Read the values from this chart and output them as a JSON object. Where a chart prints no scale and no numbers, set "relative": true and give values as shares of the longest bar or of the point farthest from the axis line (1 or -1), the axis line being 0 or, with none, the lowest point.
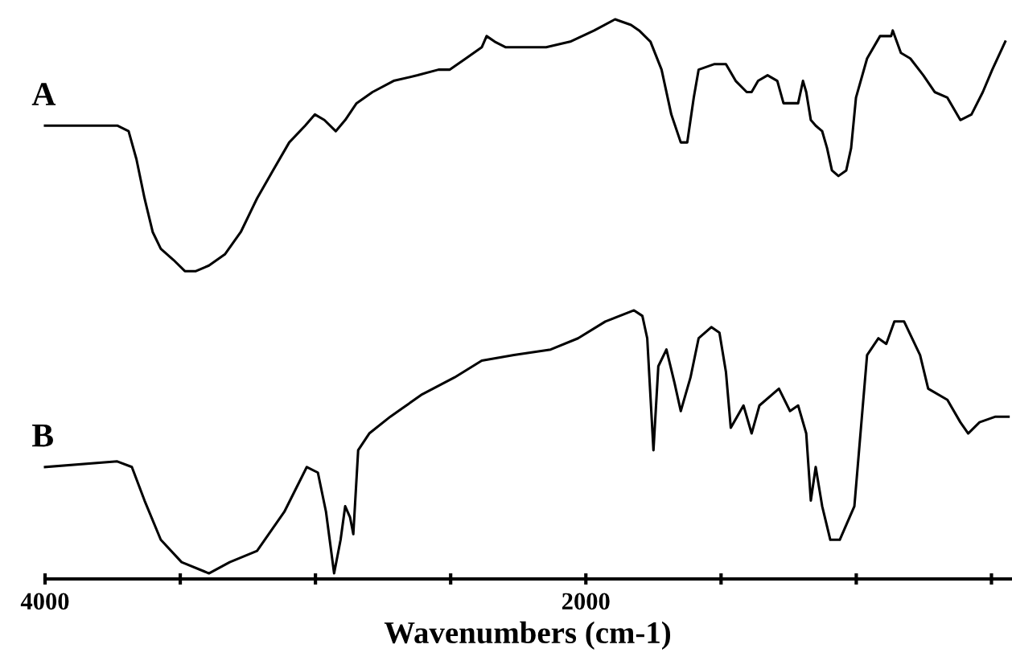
{
  "chart_data": {
    "type": "line",
    "relative": true,
    "xlabel": "Wavenumbers (cm-1)",
    "xlim": [
      4000,
      430
    ],
    "xticks": [
      4000,
      {
        "value": 3500,
        "label": null
      },
      {
        "value": 3000,
        "label": null
      },
      {
        "value": 2500,
        "label": null
      },
      2000,
      {
        "value": 1500,
        "label": null
      },
      {
        "value": 1000,
        "label": null
      },
      {
        "value": 500,
        "label": null
      }
    ],
    "grid": false,
    "legend": false,
    "marker": "none",
    "line_style": "solid",
    "series": [
      {
        "name": "A",
        "color": "#000000",
        "x": [
          4000,
          3733,
          3691,
          3662,
          3632,
          3602,
          3572,
          3525,
          3483,
          3442,
          3394,
          3335,
          3276,
          3216,
          3157,
          3097,
          3038,
          3002,
          2967,
          2925,
          2890,
          2848,
          2789,
          2711,
          2622,
          2545,
          2504,
          2444,
          2385,
          2367,
          2337,
          2296,
          2207,
          2147,
          2058,
          1969,
          1892,
          1833,
          1803,
          1761,
          1720,
          1684,
          1649,
          1625,
          1601,
          1583,
          1524,
          1482,
          1446,
          1405,
          1387,
          1363,
          1328,
          1292,
          1269,
          1245,
          1215,
          1197,
          1185,
          1168,
          1150,
          1126,
          1108,
          1090,
          1066,
          1037,
          1019,
          1001,
          960,
          912,
          871,
          865,
          835,
          800,
          752,
          710,
          663,
          615,
          574,
          532,
          497,
          449
        ],
        "values": [
          0.81,
          0.81,
          0.8,
          0.75,
          0.68,
          0.62,
          0.59,
          0.57,
          0.55,
          0.55,
          0.56,
          0.58,
          0.62,
          0.68,
          0.73,
          0.78,
          0.81,
          0.83,
          0.82,
          0.8,
          0.82,
          0.85,
          0.87,
          0.89,
          0.9,
          0.91,
          0.91,
          0.93,
          0.95,
          0.97,
          0.96,
          0.95,
          0.95,
          0.95,
          0.96,
          0.98,
          1.0,
          0.99,
          0.98,
          0.96,
          0.91,
          0.83,
          0.78,
          0.78,
          0.86,
          0.91,
          0.92,
          0.92,
          0.89,
          0.87,
          0.87,
          0.89,
          0.9,
          0.89,
          0.85,
          0.85,
          0.85,
          0.89,
          0.87,
          0.82,
          0.81,
          0.8,
          0.77,
          0.73,
          0.72,
          0.73,
          0.77,
          0.86,
          0.93,
          0.97,
          0.97,
          0.98,
          0.94,
          0.93,
          0.9,
          0.87,
          0.86,
          0.82,
          0.83,
          0.87,
          0.91,
          0.96
        ]
      },
      {
        "name": "B",
        "color": "#000000",
        "x": [
          4000,
          3733,
          3679,
          3632,
          3572,
          3495,
          3394,
          3317,
          3216,
          3115,
          3032,
          2991,
          2961,
          2931,
          2907,
          2890,
          2872,
          2860,
          2842,
          2801,
          2723,
          2605,
          2486,
          2385,
          2266,
          2130,
          2029,
          1928,
          1822,
          1791,
          1773,
          1750,
          1732,
          1702,
          1672,
          1649,
          1613,
          1583,
          1536,
          1506,
          1482,
          1464,
          1417,
          1387,
          1358,
          1286,
          1245,
          1215,
          1185,
          1168,
          1150,
          1126,
          1096,
          1061,
          1007,
          960,
          918,
          889,
          859,
          823,
          764,
          734,
          663,
          615,
          586,
          544,
          485,
          437
        ],
        "values": [
          0.2,
          0.21,
          0.2,
          0.14,
          0.07,
          0.03,
          0.01,
          0.03,
          0.05,
          0.12,
          0.2,
          0.19,
          0.12,
          0.01,
          0.07,
          0.13,
          0.11,
          0.08,
          0.23,
          0.26,
          0.29,
          0.33,
          0.36,
          0.39,
          0.4,
          0.41,
          0.43,
          0.46,
          0.48,
          0.47,
          0.43,
          0.23,
          0.38,
          0.41,
          0.35,
          0.3,
          0.36,
          0.43,
          0.45,
          0.44,
          0.37,
          0.27,
          0.31,
          0.26,
          0.31,
          0.34,
          0.3,
          0.31,
          0.26,
          0.14,
          0.2,
          0.13,
          0.07,
          0.07,
          0.13,
          0.4,
          0.43,
          0.42,
          0.46,
          0.46,
          0.4,
          0.34,
          0.32,
          0.28,
          0.26,
          0.28,
          0.29,
          0.29
        ]
      }
    ]
  }
}
